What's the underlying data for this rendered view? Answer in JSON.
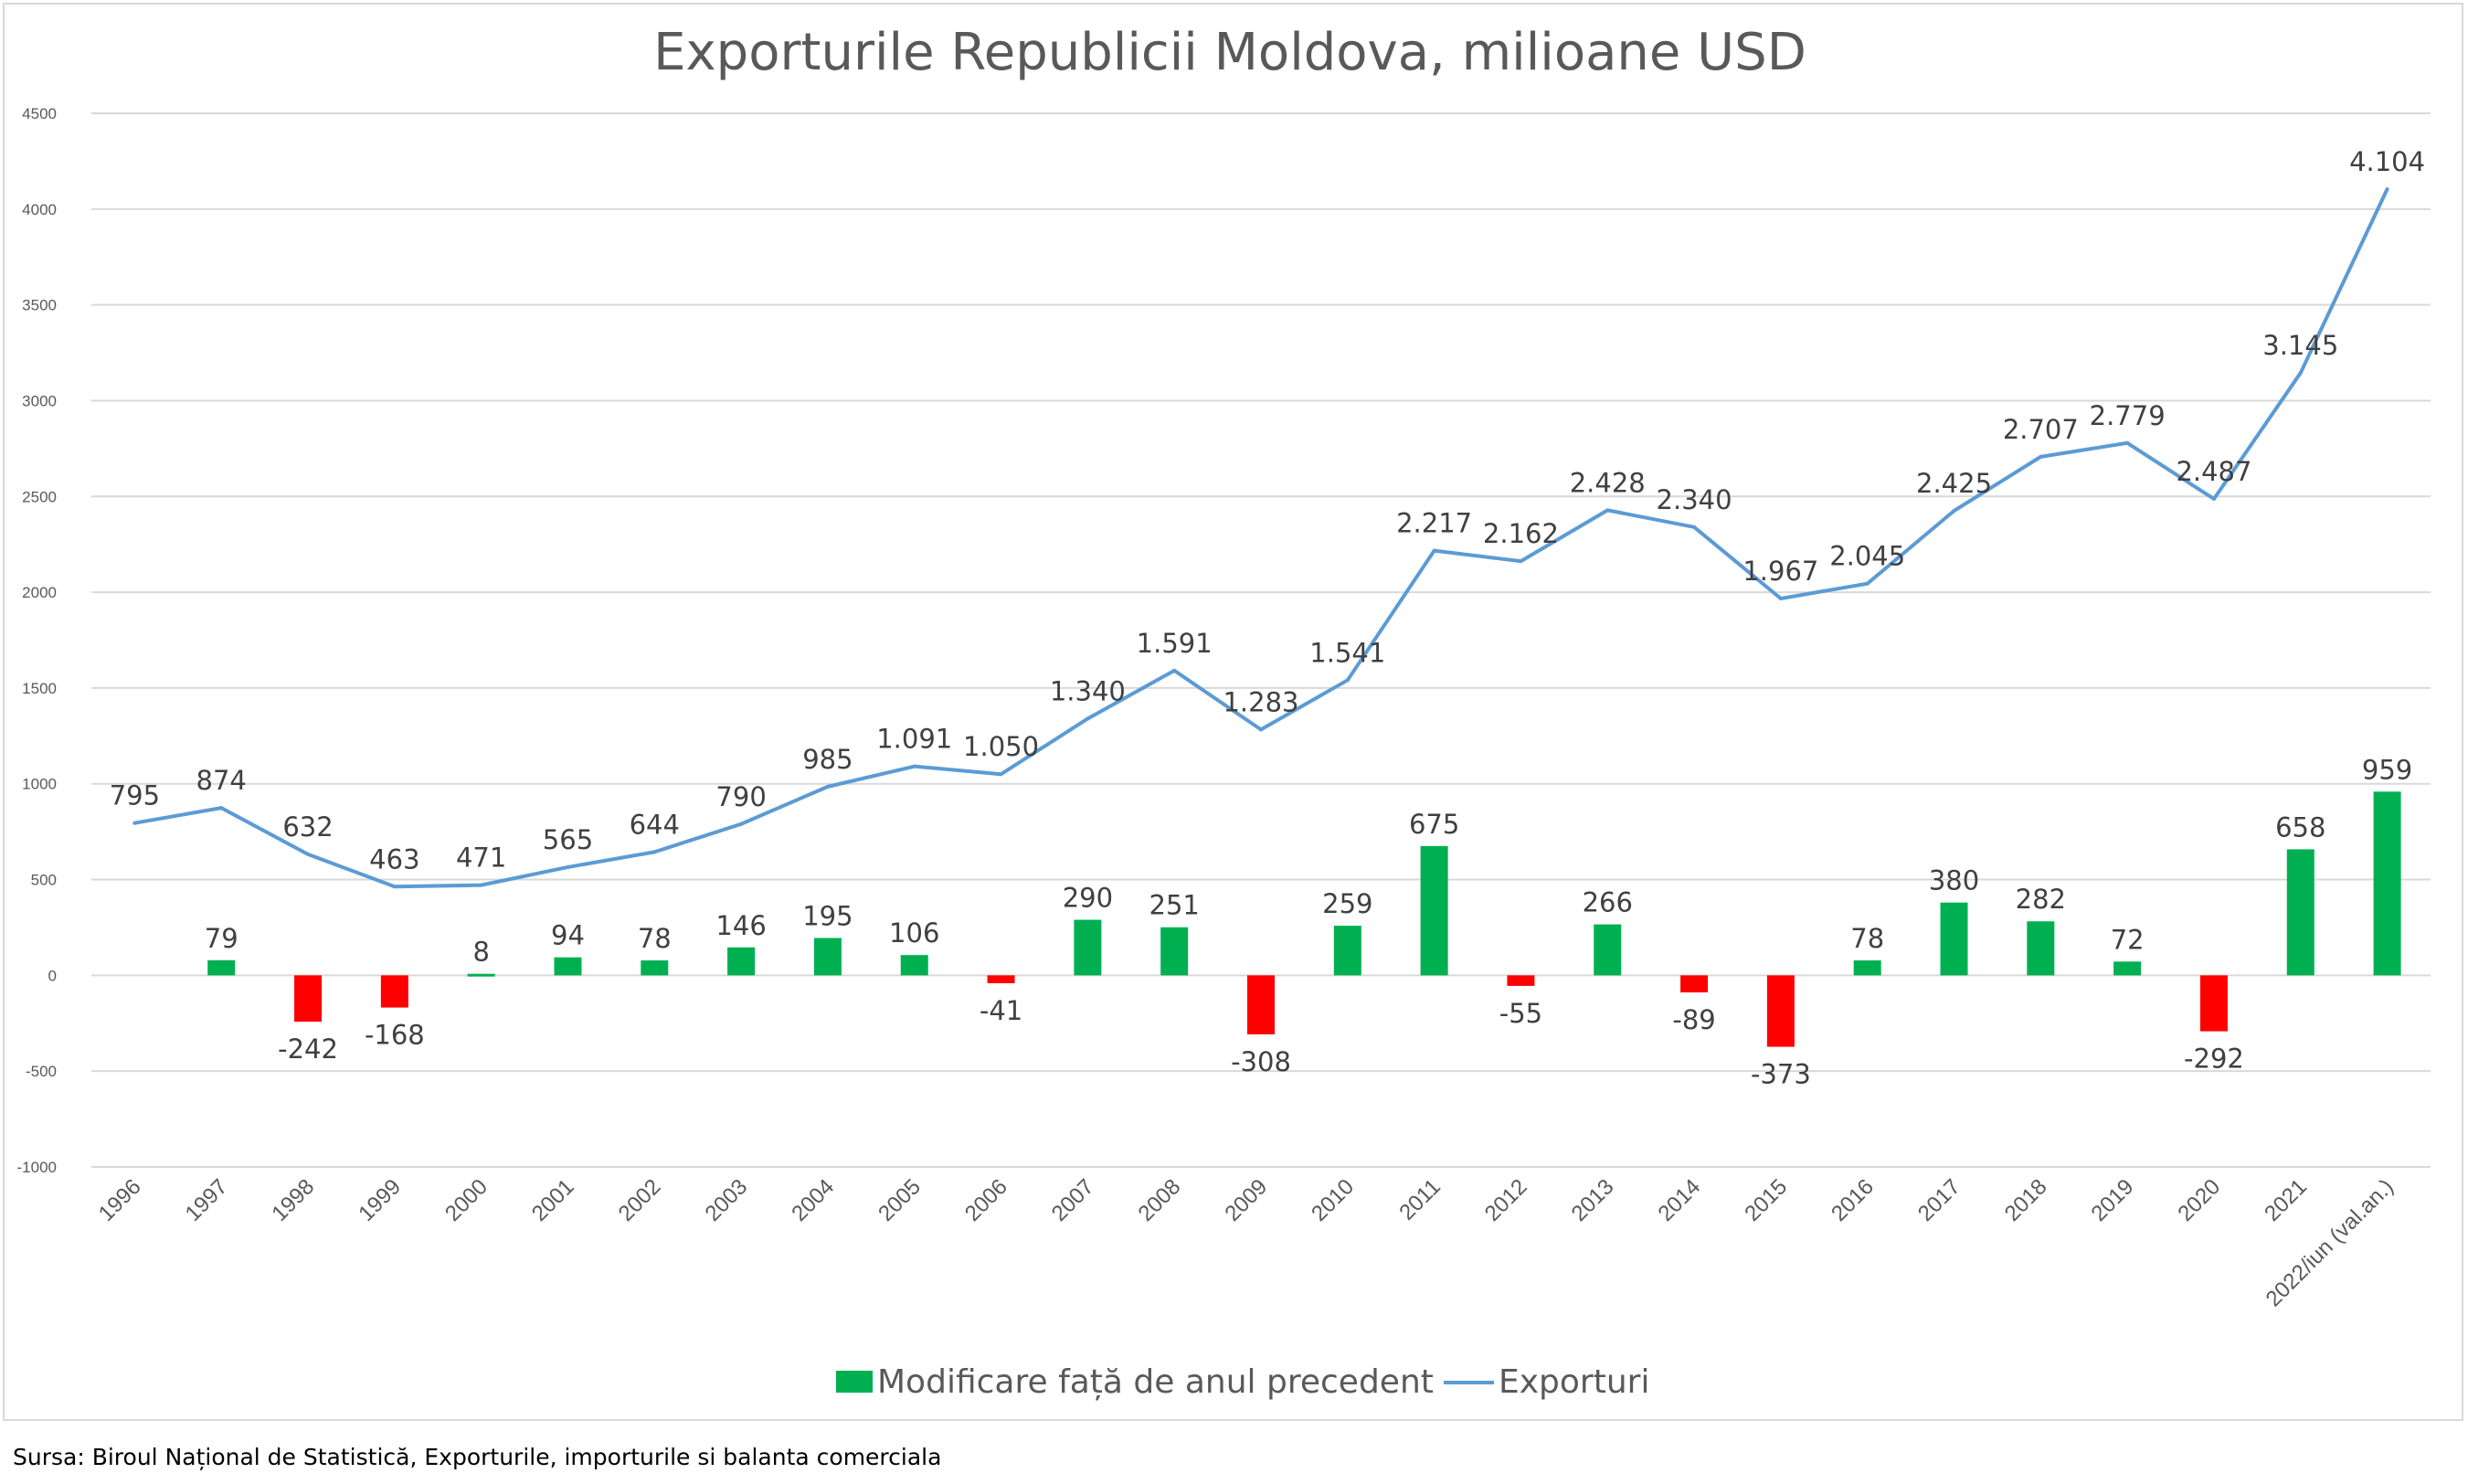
{
  "chart_data": {
    "type": "bar+line",
    "title": "Exporturile Republicii Moldova, milioane USD",
    "xlabel": "",
    "ylabel": "",
    "ylim": [
      -1000,
      4500
    ],
    "yticks": [
      4500,
      4000,
      3500,
      3000,
      2500,
      2000,
      1500,
      1000,
      500,
      0,
      -500,
      -1000
    ],
    "grid": true,
    "legend_position": "bottom",
    "categories": [
      "1996",
      "1997",
      "1998",
      "1999",
      "2000",
      "2001",
      "2002",
      "2003",
      "2004",
      "2005",
      "2006",
      "2007",
      "2008",
      "2009",
      "2010",
      "2011",
      "2012",
      "2013",
      "2014",
      "2015",
      "2016",
      "2017",
      "2018",
      "2019",
      "2020",
      "2021",
      "2022/iun (val.an.)"
    ],
    "series": [
      {
        "name": "Modificare față de anul precedent",
        "type": "bar",
        "positive_color": "#00b050",
        "negative_color": "#ff0000",
        "values": [
          null,
          79,
          -242,
          -168,
          8,
          94,
          78,
          146,
          195,
          106,
          -41,
          290,
          251,
          -308,
          259,
          675,
          -55,
          266,
          -89,
          -373,
          78,
          380,
          282,
          72,
          -292,
          658,
          959
        ],
        "labels": [
          "",
          "79",
          "-242",
          "-168",
          "8",
          "94",
          "78",
          "146",
          "195",
          "106",
          "-41",
          "290",
          "251",
          "-308",
          "259",
          "675",
          "-55",
          "266",
          "-89",
          "-373",
          "78",
          "380",
          "282",
          "72",
          "-292",
          "658",
          "959"
        ]
      },
      {
        "name": "Exporturi",
        "type": "line",
        "color": "#5b9bd5",
        "values": [
          795,
          874,
          632,
          463,
          471,
          565,
          644,
          790,
          985,
          1091,
          1050,
          1340,
          1591,
          1283,
          1541,
          2217,
          2162,
          2428,
          2340,
          1967,
          2045,
          2425,
          2707,
          2779,
          2487,
          3145,
          4104
        ],
        "labels": [
          "795",
          "874",
          "632",
          "463",
          "471",
          "565",
          "644",
          "790",
          "985",
          "1.091",
          "1.050",
          "1.340",
          "1.591",
          "1.283",
          "1.541",
          "2.217",
          "2.162",
          "2.428",
          "2.340",
          "1.967",
          "2.045",
          "2.425",
          "2.707",
          "2.779",
          "2.487",
          "3.145",
          "4.104"
        ]
      }
    ]
  },
  "legend": {
    "bar_label": "Modificare față de anul precedent",
    "line_label": "Exporturi"
  },
  "source": "Sursa: Biroul Național de Statistică, Exporturile, importurile si balanta comerciala",
  "colors": {
    "grid": "#d9d9d9",
    "axis_text": "#595959",
    "label_text": "#404040",
    "title_text": "#595959"
  }
}
